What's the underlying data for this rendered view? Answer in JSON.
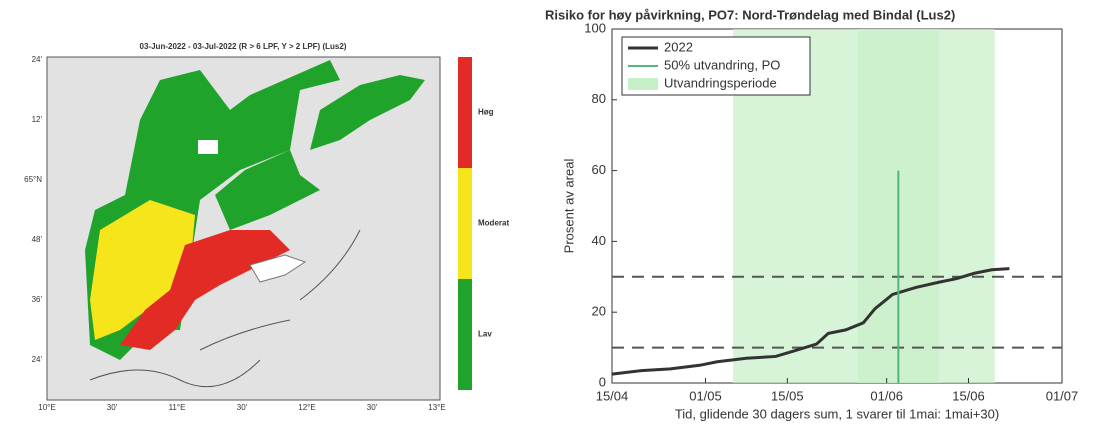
{
  "map": {
    "title": "03-Jun-2022  - 03-Jul-2022  (R > 6 LPF, Y > 2 LPF) (Lus2)",
    "colorbar": [
      "Høg",
      "Moderat",
      "Lav"
    ],
    "colorbar_colors": [
      "#e32b26",
      "#f7e51b",
      "#1fa32b"
    ],
    "y_labels": [
      "24'",
      "12'",
      "65°N",
      "48'",
      "36'",
      "24'"
    ],
    "x_labels": [
      "10°E",
      "30'",
      "11°E",
      "30'",
      "12°E",
      "30'",
      "13°E"
    ]
  },
  "chart_data": {
    "type": "line",
    "title": "Risiko for høy påvirkning, PO7: Nord-Trøndelag med Bindal (Lus2)",
    "xlabel": "Tid, glidende 30 dagers sum, 1 svarer til 1mai: 1mai+30)",
    "ylabel": "Prosent av areal",
    "xlim": [
      105,
      182
    ],
    "xticks": [
      {
        "value": 105,
        "label": "15/04"
      },
      {
        "value": 121,
        "label": "01/05"
      },
      {
        "value": 135,
        "label": "15/05"
      },
      {
        "value": 152,
        "label": "01/06"
      },
      {
        "value": 166,
        "label": "15/06"
      },
      {
        "value": 182,
        "label": "01/07"
      }
    ],
    "ylim": [
      0,
      100
    ],
    "yticks": [
      0,
      20,
      40,
      60,
      80,
      100
    ],
    "reference_lines": [
      10,
      30
    ],
    "legend": "upper left",
    "series": [
      {
        "name": "2022",
        "color": "#333333",
        "x": [
          105,
          110,
          115,
          120,
          123,
          128,
          133,
          136,
          140,
          142,
          145,
          148,
          150,
          153,
          157,
          161,
          164,
          167,
          170,
          173
        ],
        "values": [
          2.5,
          3.5,
          4,
          5,
          6,
          7,
          7.5,
          9,
          11,
          14,
          15,
          17,
          21,
          25,
          27,
          28.5,
          29.5,
          31,
          32,
          32.3
        ]
      },
      {
        "name": "50% utvandring, PO",
        "color": "#4db87a",
        "x": [
          154,
          154
        ],
        "values": [
          0,
          60
        ]
      },
      {
        "name": "Utvandringsperiode",
        "color": "#c8f0c8",
        "spans": [
          [
            125.7,
            170.5
          ],
          [
            147,
            161
          ]
        ]
      }
    ]
  }
}
